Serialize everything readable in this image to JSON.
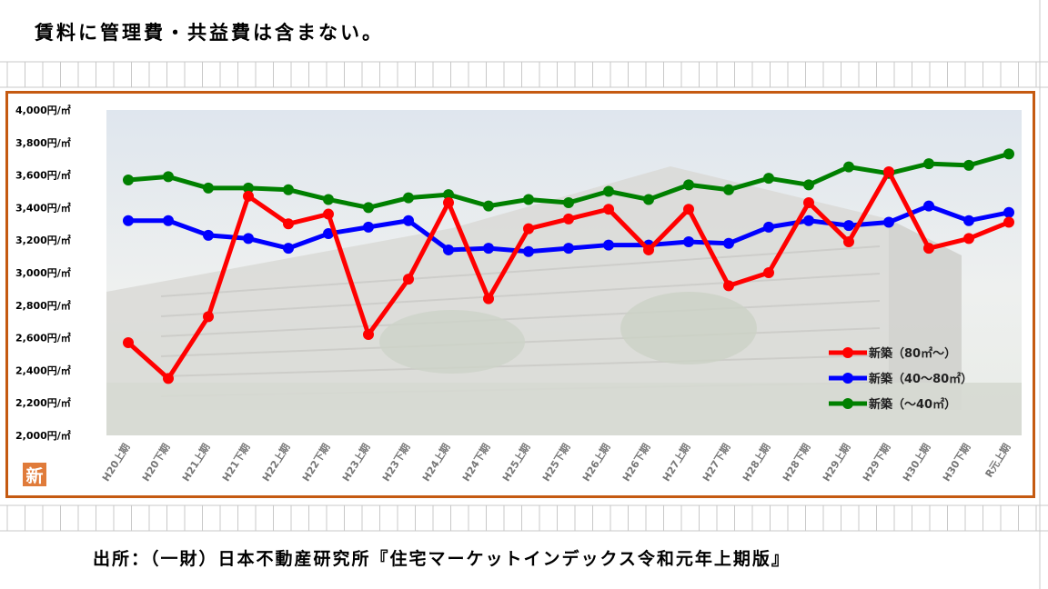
{
  "note_text": "賃料に管理費・共益費は含まない。",
  "source_text": "出所：（一財）日本不動産研究所『住宅マーケットインデックス令和元年上期版』",
  "badge": {
    "text": "新",
    "color": "#e07b3a"
  },
  "colors": {
    "frame": "#c55a11",
    "grid": "#c8c8c8"
  },
  "chart_data": {
    "type": "line",
    "ylim": [
      2000,
      4000
    ],
    "y_ticks": [
      "2,000円/㎡",
      "2,200円/㎡",
      "2,400円/㎡",
      "2,600円/㎡",
      "2,800円/㎡",
      "3,000円/㎡",
      "3,200円/㎡",
      "3,400円/㎡",
      "3,600円/㎡",
      "3,800円/㎡",
      "4,000円/㎡"
    ],
    "y_tick_values": [
      2000,
      2200,
      2400,
      2600,
      2800,
      3000,
      3200,
      3400,
      3600,
      3800,
      4000
    ],
    "categories": [
      "H20上期",
      "H20下期",
      "H21上期",
      "H21下期",
      "H22上期",
      "H22下期",
      "H23上期",
      "H23下期",
      "H24上期",
      "H24下期",
      "H25上期",
      "H25下期",
      "H26上期",
      "H26下期",
      "H27上期",
      "H27下期",
      "H28上期",
      "H28下期",
      "H29上期",
      "H29下期",
      "H30上期",
      "H30下期",
      "R元上期"
    ],
    "series": [
      {
        "name": "新築（80㎡～）",
        "color": "#ff0000",
        "values": [
          2570,
          2350,
          2730,
          3470,
          3300,
          3360,
          2620,
          2960,
          3430,
          2840,
          3270,
          3330,
          3390,
          3140,
          3390,
          2920,
          3000,
          3430,
          3190,
          3620,
          3150,
          3210,
          3310
        ]
      },
      {
        "name": "新築（40～80㎡）",
        "color": "#0000ff",
        "values": [
          3320,
          3320,
          3230,
          3210,
          3150,
          3240,
          3280,
          3320,
          3140,
          3150,
          3130,
          3150,
          3170,
          3170,
          3190,
          3180,
          3280,
          3320,
          3290,
          3310,
          3410,
          3320,
          3370
        ]
      },
      {
        "name": "新築（～40㎡）",
        "color": "#008000",
        "values": [
          3570,
          3590,
          3520,
          3520,
          3510,
          3450,
          3400,
          3460,
          3480,
          3410,
          3450,
          3430,
          3500,
          3450,
          3540,
          3510,
          3580,
          3540,
          3650,
          3610,
          3670,
          3660,
          3730
        ]
      }
    ],
    "legend_position": "right"
  }
}
